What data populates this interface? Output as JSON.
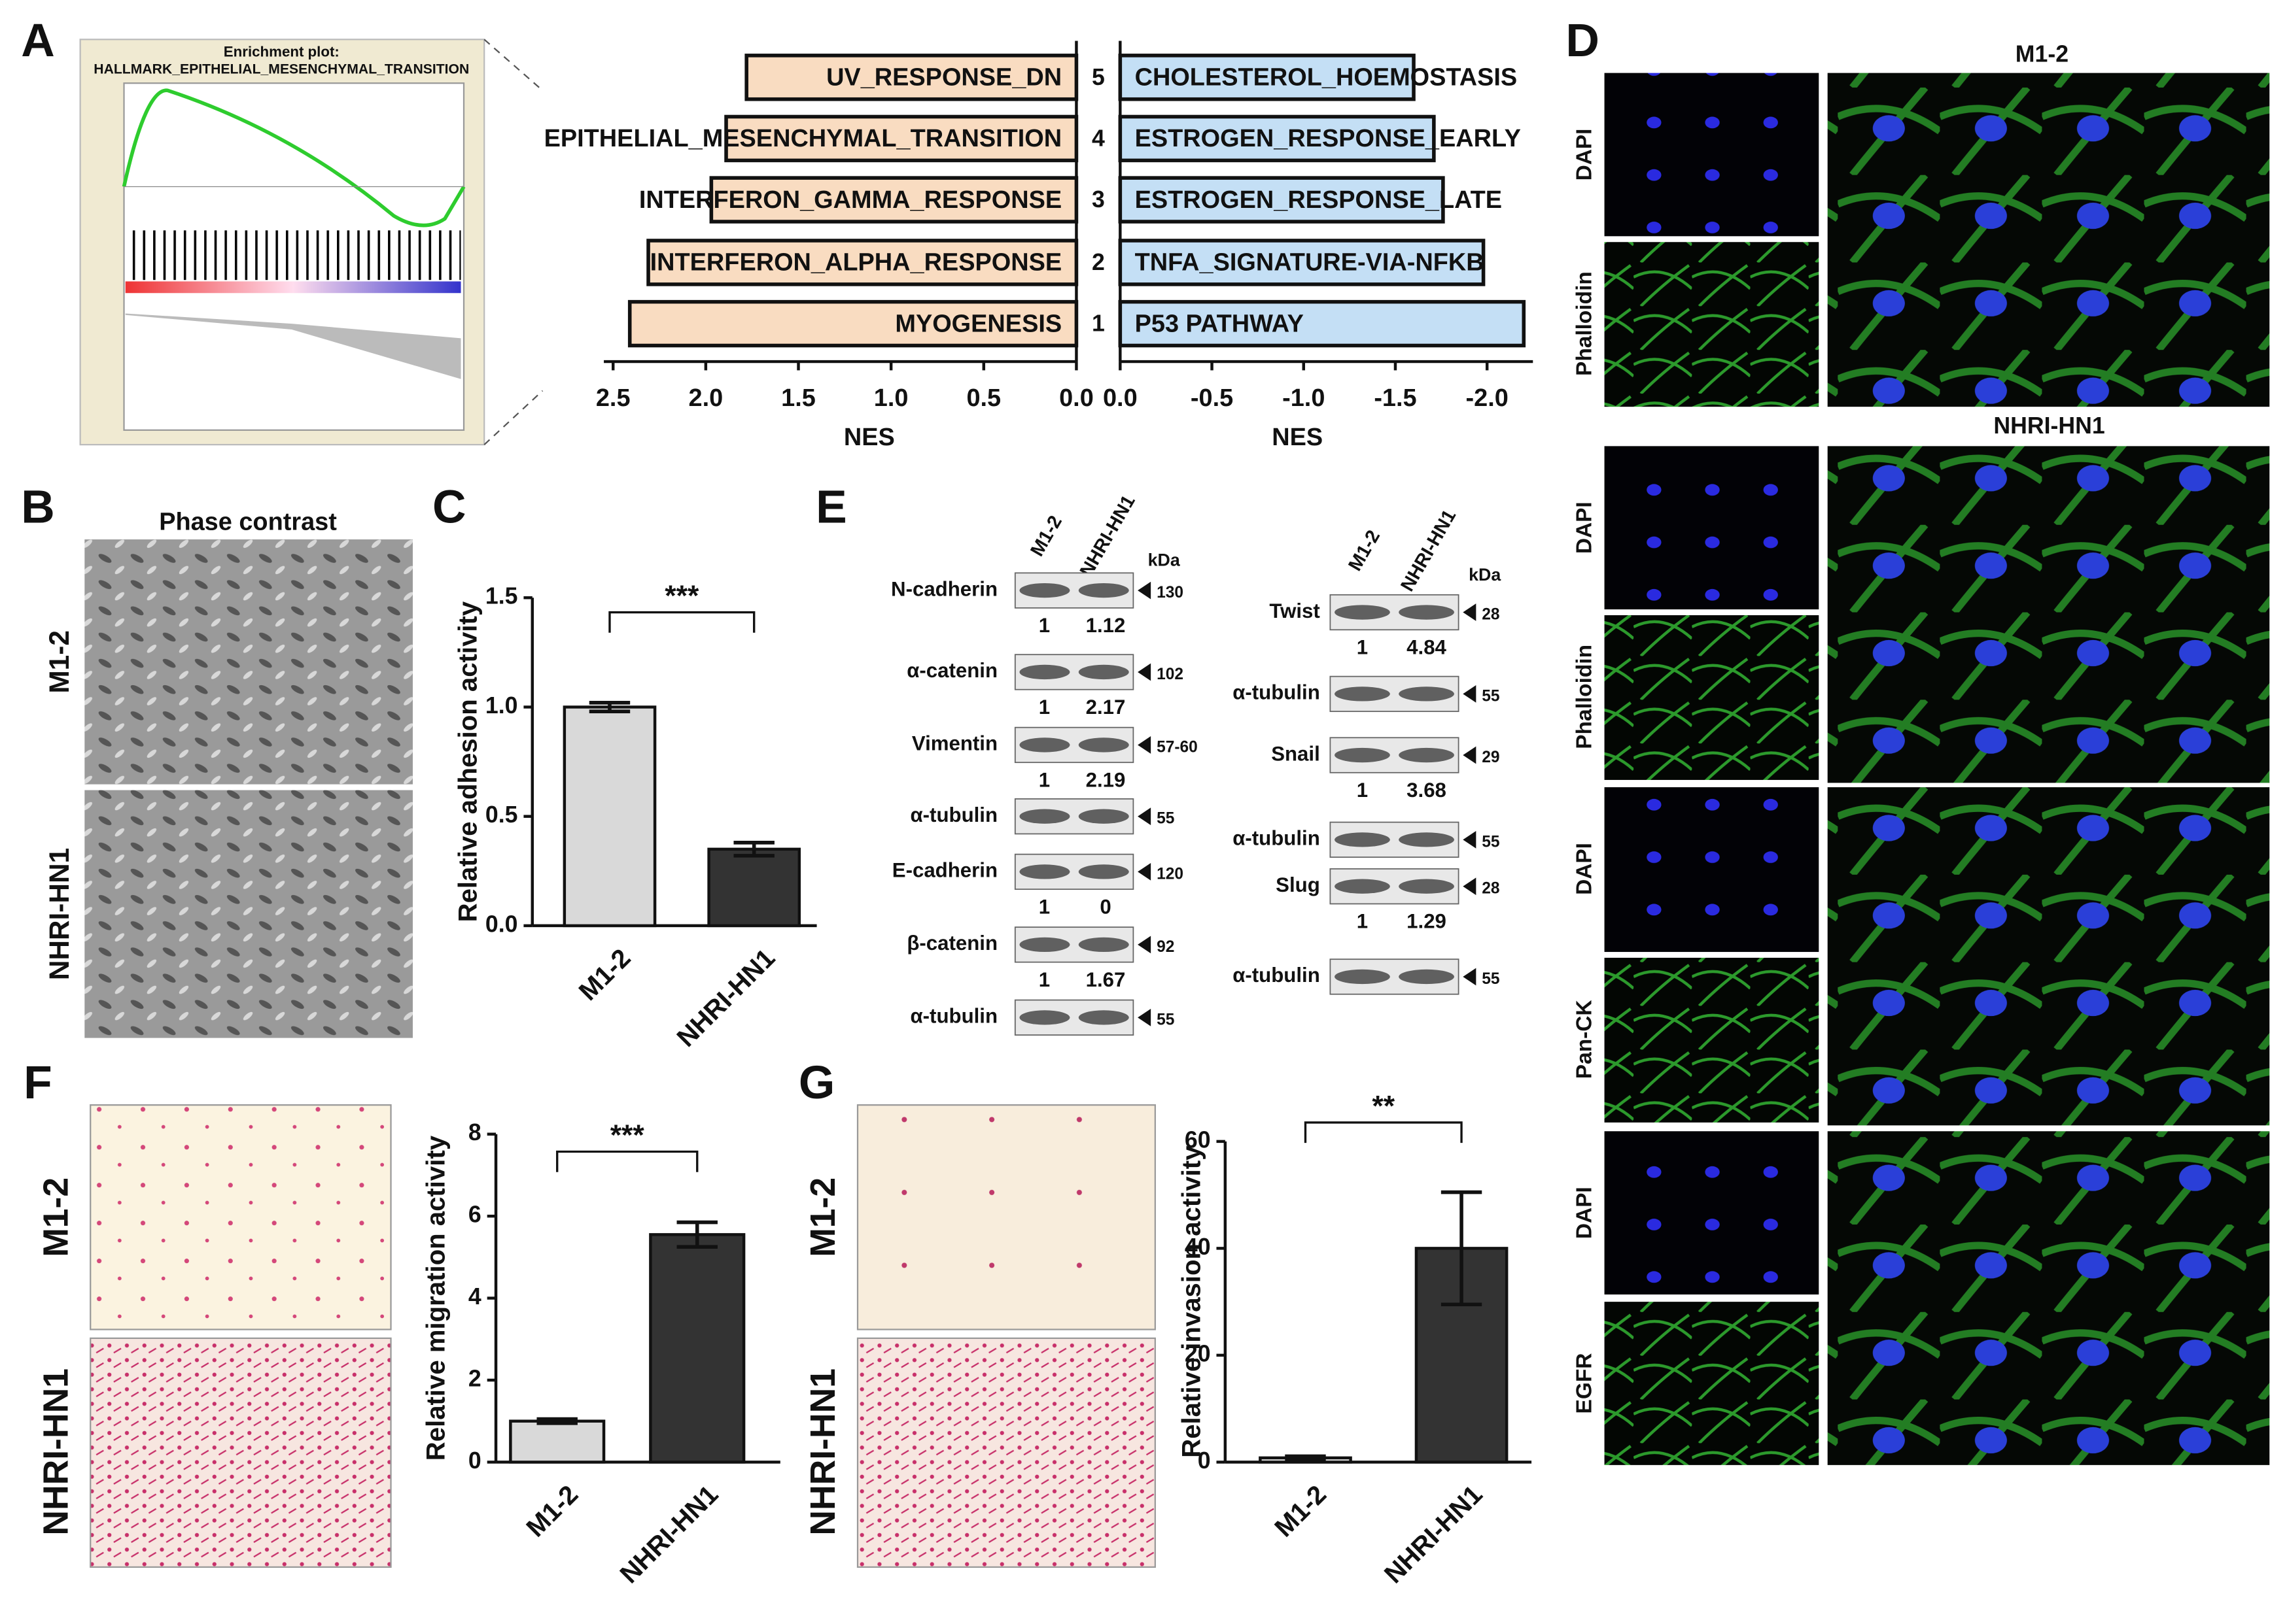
{
  "panel_labels": [
    "A",
    "B",
    "C",
    "D",
    "E",
    "F",
    "G"
  ],
  "gsea": {
    "title_line1": "Enrichment plot:",
    "title_line2": "HALLMARK_EPITHELIAL_MESENCHYMAL_TRANSITION"
  },
  "micrographs": {
    "B": {
      "title": "Phase contrast",
      "rows": [
        "M1-2",
        "NHRI-HN1"
      ]
    },
    "F": {
      "rows": [
        "M1-2",
        "NHRI-HN1"
      ]
    },
    "G": {
      "rows": [
        "M1-2",
        "NHRI-HN1"
      ]
    },
    "D": {
      "groups": [
        {
          "title": "M1-2",
          "stains": [
            "DAPI",
            "Phalloidin"
          ]
        },
        {
          "title": "NHRI-HN1",
          "stains": [
            "DAPI",
            "Phalloidin",
            "DAPI",
            "Pan-CK",
            "DAPI",
            "EGFR"
          ]
        }
      ]
    }
  },
  "western": {
    "lanes": [
      "M1-2",
      "NHRI-HN1"
    ],
    "unit": "kDa",
    "left": [
      {
        "label": "N-cadherin",
        "kda": "130",
        "quant": [
          "1",
          "1.12"
        ]
      },
      {
        "label": "α-catenin",
        "kda": "102",
        "quant": [
          "1",
          "2.17"
        ]
      },
      {
        "label": "Vimentin",
        "kda": "57-60",
        "quant": [
          "1",
          "2.19"
        ]
      },
      {
        "label": "α-tubulin",
        "kda": "55"
      },
      {
        "label": "E-cadherin",
        "kda": "120",
        "quant": [
          "1",
          "0"
        ]
      },
      {
        "label": "β-catenin",
        "kda": "92",
        "quant": [
          "1",
          "1.67"
        ]
      },
      {
        "label": "α-tubulin",
        "kda": "55"
      }
    ],
    "right": [
      {
        "label": "Twist",
        "kda": "28",
        "quant": [
          "1",
          "4.84"
        ]
      },
      {
        "label": "α-tubulin",
        "kda": "55"
      },
      {
        "label": "Snail",
        "kda": "29",
        "quant": [
          "1",
          "3.68"
        ]
      },
      {
        "label": "α-tubulin",
        "kda": "55"
      },
      {
        "label": "Slug",
        "kda": "28",
        "quant": [
          "1",
          "1.29"
        ]
      },
      {
        "label": "α-tubulin",
        "kda": "55"
      }
    ]
  },
  "chart_data": [
    {
      "type": "barh",
      "xlabel": "NES",
      "categories": [
        "UV_RESPONSE_DN",
        "EPITHELIAL_MESENCHYMAL_TRANSITION",
        "INTERFERON_GAMMA_RESPONSE",
        "INTERFERON_ALPHA_RESPONSE",
        "MYOGENESIS"
      ],
      "ranks": [
        "5",
        "4",
        "3",
        "2",
        "1"
      ],
      "values": [
        1.78,
        1.89,
        1.97,
        2.31,
        2.41
      ],
      "color": "#f9dcc1",
      "xlim": [
        2.55,
        0
      ],
      "xticks": [
        2.5,
        {
          "value": 2,
          "label": "2.0"
        },
        1.5,
        {
          "value": 1,
          "label": "1.0"
        },
        0.5,
        {
          "value": 0,
          "label": "0.0"
        }
      ]
    },
    {
      "type": "barh",
      "xlabel": "NES",
      "categories": [
        "CHOLESTEROL_HOEMOSTASIS",
        "ESTROGEN_RESPONSE_EARLY",
        "ESTROGEN_RESPONSE_LATE",
        "TNFA_SIGNATURE-VIA-NFKB",
        "P53 PATHWAY"
      ],
      "values": [
        -1.6,
        -1.71,
        -1.76,
        -1.98,
        -2.2
      ],
      "color": "#c4dff5",
      "xlim": [
        0,
        -2.25
      ],
      "xticks": [
        {
          "value": 0,
          "label": "0.0"
        },
        -0.5,
        {
          "value": -1,
          "label": "-1.0"
        },
        -1.5,
        {
          "value": -2,
          "label": "-2.0"
        }
      ]
    },
    {
      "type": "bar",
      "ylabel": "Relative adhesion activity",
      "categories": [
        "M1-2",
        "NHRI-HN1"
      ],
      "values": [
        1.0,
        0.35
      ],
      "errors": [
        0.02,
        0.03
      ],
      "colors": [
        "#d9d9d9",
        "#333333"
      ],
      "ylim": [
        0,
        1.5
      ],
      "yticks": [
        {
          "value": 0,
          "label": "0.0"
        },
        0.5,
        {
          "value": 1,
          "label": "1.0"
        },
        1.5
      ],
      "significance": "***"
    },
    {
      "type": "bar",
      "ylabel": "Relative migration activity",
      "categories": [
        "M1-2",
        "NHRI-HN1"
      ],
      "values": [
        1.0,
        5.55
      ],
      "errors": [
        0.05,
        0.3
      ],
      "colors": [
        "#d9d9d9",
        "#333333"
      ],
      "ylim": [
        0,
        8
      ],
      "yticks": [
        0,
        2,
        4,
        6,
        8
      ],
      "significance": "***"
    },
    {
      "type": "bar",
      "ylabel": "Relative invasion activity",
      "categories": [
        "M1-2",
        "NHRI-HN1"
      ],
      "values": [
        0.8,
        40
      ],
      "errors": [
        0.3,
        10.5
      ],
      "colors": [
        "#d9d9d9",
        "#333333"
      ],
      "ylim": [
        0,
        60
      ],
      "yticks": [
        0,
        20,
        40,
        60
      ],
      "significance": "**"
    }
  ]
}
